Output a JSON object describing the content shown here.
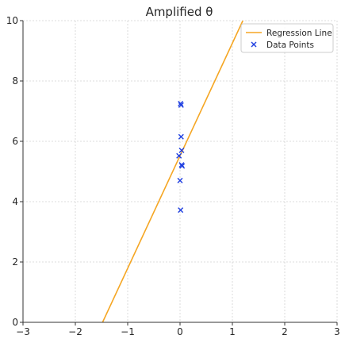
{
  "chart_data": {
    "type": "scatter",
    "title": "Amplified θ",
    "xlabel": "",
    "ylabel": "",
    "xlim": [
      -3,
      3
    ],
    "ylim": [
      0,
      10
    ],
    "x_ticks": [
      -3,
      -2,
      -1,
      0,
      1,
      2,
      3
    ],
    "y_ticks": [
      0,
      2,
      4,
      6,
      8,
      10
    ],
    "x_tick_labels": [
      "−3",
      "−2",
      "−1",
      "0",
      "1",
      "2",
      "3"
    ],
    "y_tick_labels": [
      "0",
      "2",
      "4",
      "6",
      "8",
      "10"
    ],
    "grid": true,
    "legend_position": "top-right",
    "series": [
      {
        "name": "Regression Line",
        "kind": "line",
        "color": "#f5a623",
        "points": [
          [
            -1.48,
            0
          ],
          [
            1.2,
            10
          ]
        ]
      },
      {
        "name": "Data Points",
        "kind": "scatter",
        "marker": "x",
        "color": "#1f3fe0",
        "points": [
          [
            0.01,
            7.25
          ],
          [
            0.02,
            7.2
          ],
          [
            0.02,
            6.15
          ],
          [
            0.03,
            5.7
          ],
          [
            -0.02,
            5.52
          ],
          [
            0.03,
            5.22
          ],
          [
            0.04,
            5.18
          ],
          [
            0.0,
            4.7
          ],
          [
            0.01,
            3.72
          ]
        ]
      }
    ]
  }
}
